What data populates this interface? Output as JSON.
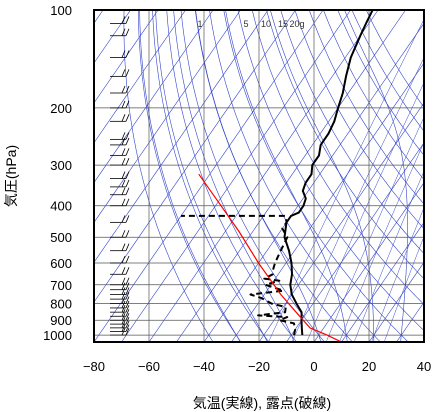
{
  "chart_data": {
    "type": "line",
    "title": "",
    "xlabel": "気温(実線), 露点(破線)",
    "ylabel": "気圧(hPa)",
    "xlim": [
      -80,
      40
    ],
    "ylim": [
      1050,
      100
    ],
    "y_scale": "log",
    "x_ticks": [
      -80,
      -60,
      -40,
      -20,
      0,
      20,
      40
    ],
    "x_tick_labels": [
      "−80",
      "−60",
      "−40",
      "−20",
      "0",
      "20",
      "40"
    ],
    "y_ticks": [
      100,
      200,
      300,
      400,
      500,
      600,
      700,
      800,
      900,
      1000
    ],
    "y_tick_labels": [
      "100",
      "200",
      "300",
      "400",
      "500",
      "600",
      "700",
      "800",
      "900",
      "1000"
    ],
    "mixing_ratio_labels": [
      "1",
      "5",
      "10",
      "15",
      "20g"
    ],
    "series": [
      {
        "role": "temperature",
        "style": "solid",
        "color": "#000000",
        "points": [
          [
            -6,
            1000
          ],
          [
            -8,
            950
          ],
          [
            -10,
            900
          ],
          [
            -12,
            850
          ],
          [
            -16,
            800
          ],
          [
            -20,
            750
          ],
          [
            -23,
            700
          ],
          [
            -25,
            650
          ],
          [
            -28,
            600
          ],
          [
            -32,
            550
          ],
          [
            -37,
            500
          ],
          [
            -40,
            450
          ],
          [
            -40,
            430
          ],
          [
            -38,
            420
          ],
          [
            -38,
            400
          ],
          [
            -39,
            380
          ],
          [
            -42,
            360
          ],
          [
            -43,
            340
          ],
          [
            -43,
            320
          ],
          [
            -45,
            300
          ],
          [
            -45,
            280
          ],
          [
            -47,
            260
          ],
          [
            -47,
            240
          ],
          [
            -48,
            220
          ],
          [
            -50,
            200
          ],
          [
            -52,
            180
          ],
          [
            -55,
            160
          ],
          [
            -58,
            140
          ],
          [
            -60,
            120
          ],
          [
            -61,
            110
          ],
          [
            -62,
            100
          ]
        ]
      },
      {
        "role": "dewpoint",
        "style": "dashed",
        "color": "#000000",
        "points": [
          [
            -9,
            1000
          ],
          [
            -10,
            960
          ],
          [
            -12,
            920
          ],
          [
            -18,
            900
          ],
          [
            -16,
            880
          ],
          [
            -27,
            870
          ],
          [
            -18,
            850
          ],
          [
            -19,
            820
          ],
          [
            -25,
            800
          ],
          [
            -30,
            770
          ],
          [
            -35,
            750
          ],
          [
            -24,
            730
          ],
          [
            -32,
            700
          ],
          [
            -28,
            680
          ],
          [
            -34,
            670
          ],
          [
            -32,
            650
          ],
          [
            -33,
            630
          ],
          [
            -34,
            600
          ],
          [
            -35,
            550
          ],
          [
            -36,
            500
          ],
          [
            -40,
            470
          ],
          [
            -40,
            450
          ],
          [
            -42,
            430
          ],
          [
            -80,
            430
          ]
        ]
      },
      {
        "role": "parcel",
        "style": "solid",
        "color": "#ff0000",
        "points": [
          [
            10,
            1050
          ],
          [
            3,
            1000
          ],
          [
            -5,
            950
          ],
          [
            -14,
            850
          ],
          [
            -24,
            750
          ],
          [
            -40,
            600
          ],
          [
            -55,
            480
          ],
          [
            -68,
            400
          ],
          [
            -84,
            320
          ]
        ]
      }
    ],
    "wind_barbs": {
      "x": -72,
      "levels": [
        1000,
        975,
        950,
        925,
        900,
        875,
        850,
        825,
        800,
        775,
        750,
        725,
        700,
        650,
        600,
        550,
        500,
        450,
        400,
        370,
        350,
        330,
        300,
        280,
        260,
        250,
        220,
        200,
        180,
        160,
        140,
        120,
        110,
        100
      ]
    },
    "reference_lines": {
      "isotherms_step": 10,
      "dry_adiabats_C_at_1000hPa": [
        -40,
        -30,
        -20,
        -10,
        0,
        10,
        20,
        30,
        40,
        50,
        60,
        70,
        80,
        90,
        100,
        110,
        120,
        130
      ],
      "moist_adiabats_C_at_1000hPa": [
        -30,
        -20,
        -10,
        0,
        10,
        20,
        30
      ],
      "mixing_ratios_g_kg": [
        1,
        2,
        3,
        5,
        7,
        10,
        15,
        20
      ]
    },
    "grid": true,
    "legend": "none"
  }
}
